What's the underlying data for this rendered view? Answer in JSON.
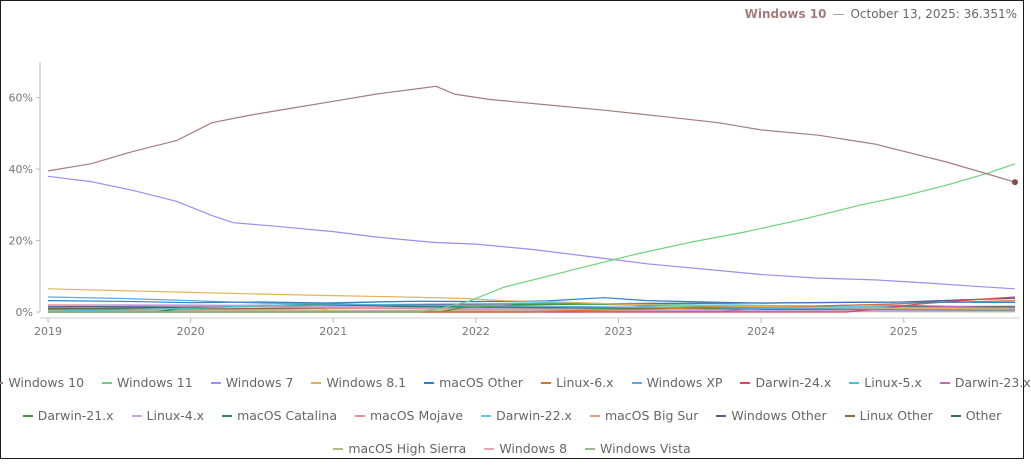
{
  "readout": {
    "series": "Windows 10",
    "separator": "—",
    "text": "October 13, 2025: 36.351%",
    "color": "#a47d7c"
  },
  "chart_data": {
    "type": "line",
    "xlim": [
      2019.0,
      2025.78
    ],
    "ylim": [
      0,
      70
    ],
    "x_ticks": [
      {
        "value": 2019,
        "label": "2019"
      },
      {
        "value": 2020,
        "label": "2020"
      },
      {
        "value": 2021,
        "label": "2021"
      },
      {
        "value": 2022,
        "label": "2022"
      },
      {
        "value": 2023,
        "label": "2023"
      },
      {
        "value": 2024,
        "label": "2024"
      },
      {
        "value": 2025,
        "label": "2025"
      }
    ],
    "y_ticks": [
      {
        "value": 0,
        "label": "0%"
      },
      {
        "value": 20,
        "label": "20%"
      },
      {
        "value": 40,
        "label": "40%"
      },
      {
        "value": 60,
        "label": "60%"
      }
    ],
    "grid": false,
    "legend": "bottom",
    "highlight": {
      "series": "Windows 10",
      "x": 2025.78,
      "y": 36.351
    },
    "series": [
      {
        "name": "Windows 10",
        "color": "#a47d7c",
        "points": [
          [
            2019.0,
            39.5
          ],
          [
            2019.3,
            41.5
          ],
          [
            2019.6,
            45
          ],
          [
            2019.9,
            48
          ],
          [
            2020.15,
            53
          ],
          [
            2020.4,
            55
          ],
          [
            2020.7,
            57
          ],
          [
            2021.0,
            59
          ],
          [
            2021.3,
            61
          ],
          [
            2021.55,
            62.3
          ],
          [
            2021.72,
            63.2
          ],
          [
            2021.85,
            61
          ],
          [
            2022.1,
            59.5
          ],
          [
            2022.5,
            58
          ],
          [
            2022.9,
            56.5
          ],
          [
            2023.3,
            54.8
          ],
          [
            2023.7,
            53
          ],
          [
            2024.0,
            51
          ],
          [
            2024.4,
            49.5
          ],
          [
            2024.8,
            47
          ],
          [
            2025.0,
            45
          ],
          [
            2025.3,
            42
          ],
          [
            2025.6,
            38.5
          ],
          [
            2025.78,
            36.351
          ]
        ]
      },
      {
        "name": "Windows 11",
        "color": "#6cd17c",
        "points": [
          [
            2019.0,
            0
          ],
          [
            2021.6,
            0
          ],
          [
            2021.75,
            1
          ],
          [
            2021.95,
            3
          ],
          [
            2022.2,
            7
          ],
          [
            2022.5,
            10
          ],
          [
            2022.8,
            13
          ],
          [
            2023.1,
            16
          ],
          [
            2023.5,
            19.5
          ],
          [
            2023.9,
            22.5
          ],
          [
            2024.3,
            26
          ],
          [
            2024.7,
            30
          ],
          [
            2025.0,
            32.5
          ],
          [
            2025.3,
            35.5
          ],
          [
            2025.6,
            39
          ],
          [
            2025.78,
            41.5
          ]
        ]
      },
      {
        "name": "Windows 7",
        "color": "#9b8ef0",
        "points": [
          [
            2019.0,
            38
          ],
          [
            2019.3,
            36.5
          ],
          [
            2019.6,
            34
          ],
          [
            2019.9,
            31
          ],
          [
            2020.15,
            27
          ],
          [
            2020.3,
            25
          ],
          [
            2020.6,
            24
          ],
          [
            2021.0,
            22.5
          ],
          [
            2021.3,
            21
          ],
          [
            2021.7,
            19.5
          ],
          [
            2022.0,
            19
          ],
          [
            2022.4,
            17.5
          ],
          [
            2022.8,
            15.5
          ],
          [
            2023.2,
            13.5
          ],
          [
            2023.6,
            12
          ],
          [
            2024.0,
            10.5
          ],
          [
            2024.4,
            9.5
          ],
          [
            2024.8,
            9
          ],
          [
            2025.2,
            8
          ],
          [
            2025.5,
            7.2
          ],
          [
            2025.78,
            6.5
          ]
        ]
      },
      {
        "name": "Windows 8.1",
        "color": "#e3b35c",
        "points": [
          [
            2019.0,
            6.5
          ],
          [
            2019.5,
            6
          ],
          [
            2020.0,
            5.5
          ],
          [
            2020.5,
            5
          ],
          [
            2021.0,
            4.6
          ],
          [
            2021.5,
            4.2
          ],
          [
            2021.9,
            3.8
          ],
          [
            2022.2,
            3.2
          ],
          [
            2022.6,
            2.8
          ],
          [
            2023.0,
            2.2
          ],
          [
            2023.5,
            1.8
          ],
          [
            2024.0,
            1.5
          ],
          [
            2024.5,
            1.2
          ],
          [
            2025.0,
            1.0
          ],
          [
            2025.78,
            0.9
          ]
        ]
      },
      {
        "name": "macOS Other",
        "color": "#2d7fc9",
        "points": [
          [
            2019.0,
            3.2
          ],
          [
            2019.5,
            3
          ],
          [
            2020.0,
            2.6
          ],
          [
            2020.5,
            2.8
          ],
          [
            2021.0,
            2.5
          ],
          [
            2021.3,
            2.8
          ],
          [
            2021.6,
            3.0
          ],
          [
            2022.0,
            2.9
          ],
          [
            2022.5,
            3.1
          ],
          [
            2022.9,
            4.0
          ],
          [
            2023.2,
            3.2
          ],
          [
            2023.6,
            2.8
          ],
          [
            2024.0,
            2.5
          ],
          [
            2024.5,
            2.7
          ],
          [
            2025.0,
            2.8
          ],
          [
            2025.78,
            2.7
          ]
        ]
      },
      {
        "name": "Linux-6.x",
        "color": "#d9722e",
        "points": [
          [
            2019.0,
            0
          ],
          [
            2022.4,
            0
          ],
          [
            2022.7,
            0.4
          ],
          [
            2023.2,
            0.8
          ],
          [
            2023.7,
            1.2
          ],
          [
            2024.2,
            1.5
          ],
          [
            2024.7,
            2.0
          ],
          [
            2025.2,
            2.6
          ],
          [
            2025.78,
            3.2
          ]
        ]
      },
      {
        "name": "Windows XP",
        "color": "#5aa9e6",
        "points": [
          [
            2019.0,
            4.2
          ],
          [
            2019.5,
            3.8
          ],
          [
            2020.0,
            3.2
          ],
          [
            2020.5,
            2.5
          ],
          [
            2021.0,
            2.2
          ],
          [
            2021.5,
            2.0
          ],
          [
            2022.0,
            1.8
          ],
          [
            2022.5,
            1.6
          ],
          [
            2023.0,
            1.4
          ],
          [
            2023.5,
            1.2
          ],
          [
            2024.0,
            1.0
          ],
          [
            2024.5,
            0.9
          ],
          [
            2025.0,
            0.8
          ],
          [
            2025.78,
            0.7
          ]
        ]
      },
      {
        "name": "Darwin-24.x",
        "color": "#e0415c",
        "points": [
          [
            2019.0,
            0
          ],
          [
            2024.6,
            0
          ],
          [
            2024.8,
            0.8
          ],
          [
            2025.1,
            2.2
          ],
          [
            2025.4,
            3.2
          ],
          [
            2025.78,
            4.2
          ]
        ]
      },
      {
        "name": "Linux-5.x",
        "color": "#3fc7d6",
        "points": [
          [
            2019.0,
            0.2
          ],
          [
            2020.0,
            1.0
          ],
          [
            2020.5,
            1.8
          ],
          [
            2021.0,
            2.6
          ],
          [
            2021.5,
            3.0
          ],
          [
            2022.0,
            3.0
          ],
          [
            2022.5,
            2.7
          ],
          [
            2023.0,
            2.3
          ],
          [
            2023.5,
            2.0
          ],
          [
            2024.0,
            1.6
          ],
          [
            2024.5,
            1.3
          ],
          [
            2025.0,
            1.1
          ],
          [
            2025.78,
            0.9
          ]
        ]
      },
      {
        "name": "Darwin-23.x",
        "color": "#c765b7",
        "points": [
          [
            2019.0,
            0
          ],
          [
            2023.7,
            0
          ],
          [
            2023.9,
            0.8
          ],
          [
            2024.3,
            1.6
          ],
          [
            2024.7,
            2.0
          ],
          [
            2025.1,
            1.8
          ],
          [
            2025.5,
            1.4
          ],
          [
            2025.78,
            1.2
          ]
        ]
      },
      {
        "name": "Darwin-21.x",
        "color": "#3f9d35",
        "points": [
          [
            2019.0,
            0
          ],
          [
            2021.75,
            0
          ],
          [
            2021.9,
            1.2
          ],
          [
            2022.3,
            2.0
          ],
          [
            2022.8,
            2.2
          ],
          [
            2023.3,
            1.8
          ],
          [
            2023.8,
            1.4
          ],
          [
            2024.3,
            1.2
          ],
          [
            2024.8,
            1.0
          ],
          [
            2025.78,
            0.8
          ]
        ]
      },
      {
        "name": "Linux-4.x",
        "color": "#c9a3ec",
        "points": [
          [
            2019.0,
            1.8
          ],
          [
            2019.5,
            2.0
          ],
          [
            2020.0,
            2.0
          ],
          [
            2020.5,
            1.8
          ],
          [
            2021.0,
            1.5
          ],
          [
            2021.5,
            1.2
          ],
          [
            2022.0,
            1.0
          ],
          [
            2022.5,
            0.8
          ],
          [
            2023.0,
            0.6
          ],
          [
            2023.5,
            0.5
          ],
          [
            2024.0,
            0.4
          ],
          [
            2024.5,
            0.3
          ],
          [
            2025.78,
            0.2
          ]
        ]
      },
      {
        "name": "macOS Catalina",
        "color": "#2b8a58",
        "points": [
          [
            2019.0,
            0
          ],
          [
            2019.75,
            0
          ],
          [
            2019.9,
            0.8
          ],
          [
            2020.3,
            1.6
          ],
          [
            2020.8,
            2.0
          ],
          [
            2021.3,
            1.8
          ],
          [
            2021.8,
            1.5
          ],
          [
            2022.3,
            1.3
          ],
          [
            2022.8,
            1.1
          ],
          [
            2023.3,
            1.0
          ],
          [
            2023.8,
            0.8
          ],
          [
            2024.3,
            0.7
          ],
          [
            2025.78,
            0.6
          ]
        ]
      },
      {
        "name": "macOS Mojave",
        "color": "#ef8b8f",
        "points": [
          [
            2019.0,
            2.0
          ],
          [
            2019.5,
            2.0
          ],
          [
            2020.0,
            1.7
          ],
          [
            2020.5,
            1.4
          ],
          [
            2021.0,
            1.1
          ],
          [
            2021.5,
            0.9
          ],
          [
            2022.0,
            0.7
          ],
          [
            2022.5,
            0.6
          ],
          [
            2023.0,
            0.5
          ],
          [
            2023.5,
            0.4
          ],
          [
            2024.0,
            0.35
          ],
          [
            2025.78,
            0.3
          ]
        ]
      },
      {
        "name": "Darwin-22.x",
        "color": "#64c4ee",
        "points": [
          [
            2019.0,
            0
          ],
          [
            2022.75,
            0
          ],
          [
            2022.9,
            1.0
          ],
          [
            2023.3,
            1.8
          ],
          [
            2023.8,
            2.0
          ],
          [
            2024.3,
            1.7
          ],
          [
            2024.8,
            1.4
          ],
          [
            2025.3,
            1.2
          ],
          [
            2025.78,
            1.0
          ]
        ]
      },
      {
        "name": "macOS Big Sur",
        "color": "#f0a078",
        "points": [
          [
            2019.0,
            0
          ],
          [
            2020.85,
            0
          ],
          [
            2021.0,
            1.2
          ],
          [
            2021.4,
            1.8
          ],
          [
            2021.9,
            1.9
          ],
          [
            2022.4,
            1.6
          ],
          [
            2022.9,
            1.3
          ],
          [
            2023.4,
            1.1
          ],
          [
            2023.9,
            0.9
          ],
          [
            2024.4,
            0.8
          ],
          [
            2025.78,
            0.6
          ]
        ]
      },
      {
        "name": "Windows Other",
        "color": "#4f5f8e",
        "points": [
          [
            2019.0,
            1.5
          ],
          [
            2019.6,
            1.6
          ],
          [
            2020.2,
            1.8
          ],
          [
            2020.8,
            2.0
          ],
          [
            2021.4,
            2.1
          ],
          [
            2022.0,
            2.2
          ],
          [
            2022.6,
            2.3
          ],
          [
            2023.2,
            2.4
          ],
          [
            2023.8,
            2.5
          ],
          [
            2024.4,
            2.6
          ],
          [
            2025.0,
            2.8
          ],
          [
            2025.4,
            3.4
          ],
          [
            2025.78,
            3.8
          ]
        ]
      },
      {
        "name": "Linux Other",
        "color": "#8a6a3a",
        "points": [
          [
            2019.0,
            0.8
          ],
          [
            2020.0,
            0.9
          ],
          [
            2021.0,
            1.0
          ],
          [
            2022.0,
            1.0
          ],
          [
            2023.0,
            1.1
          ],
          [
            2024.0,
            1.1
          ],
          [
            2025.0,
            1.2
          ],
          [
            2025.78,
            1.2
          ]
        ]
      },
      {
        "name": "Other",
        "color": "#2e6e6e",
        "points": [
          [
            2019.0,
            1.0
          ],
          [
            2019.6,
            1.2
          ],
          [
            2020.2,
            1.4
          ],
          [
            2020.8,
            1.5
          ],
          [
            2021.4,
            1.4
          ],
          [
            2022.0,
            1.3
          ],
          [
            2022.6,
            1.3
          ],
          [
            2023.2,
            1.2
          ],
          [
            2023.8,
            1.3
          ],
          [
            2024.4,
            1.4
          ],
          [
            2025.0,
            1.5
          ],
          [
            2025.78,
            1.6
          ]
        ]
      },
      {
        "name": "macOS High Sierra",
        "color": "#b5b98a",
        "points": [
          [
            2019.0,
            1.2
          ],
          [
            2019.5,
            1.0
          ],
          [
            2020.0,
            0.8
          ],
          [
            2020.5,
            0.6
          ],
          [
            2021.0,
            0.5
          ],
          [
            2021.5,
            0.4
          ],
          [
            2022.0,
            0.3
          ],
          [
            2023.0,
            0.2
          ],
          [
            2025.78,
            0.1
          ]
        ]
      },
      {
        "name": "Windows 8",
        "color": "#e8aab0",
        "points": [
          [
            2019.0,
            0.8
          ],
          [
            2019.5,
            0.7
          ],
          [
            2020.0,
            0.6
          ],
          [
            2020.5,
            0.5
          ],
          [
            2021.0,
            0.4
          ],
          [
            2022.0,
            0.3
          ],
          [
            2023.0,
            0.2
          ],
          [
            2025.78,
            0.1
          ]
        ]
      },
      {
        "name": "Windows Vista",
        "color": "#9ab895",
        "points": [
          [
            2019.0,
            0.5
          ],
          [
            2020.0,
            0.4
          ],
          [
            2021.0,
            0.3
          ],
          [
            2022.0,
            0.2
          ],
          [
            2023.0,
            0.15
          ],
          [
            2025.78,
            0.1
          ]
        ]
      }
    ]
  },
  "legend_rows": [
    [
      0,
      1,
      2,
      3,
      4,
      5,
      6,
      7,
      8,
      9
    ],
    [
      10,
      11,
      12,
      13,
      14,
      15,
      16,
      17,
      18
    ],
    [
      19,
      20,
      21
    ]
  ]
}
